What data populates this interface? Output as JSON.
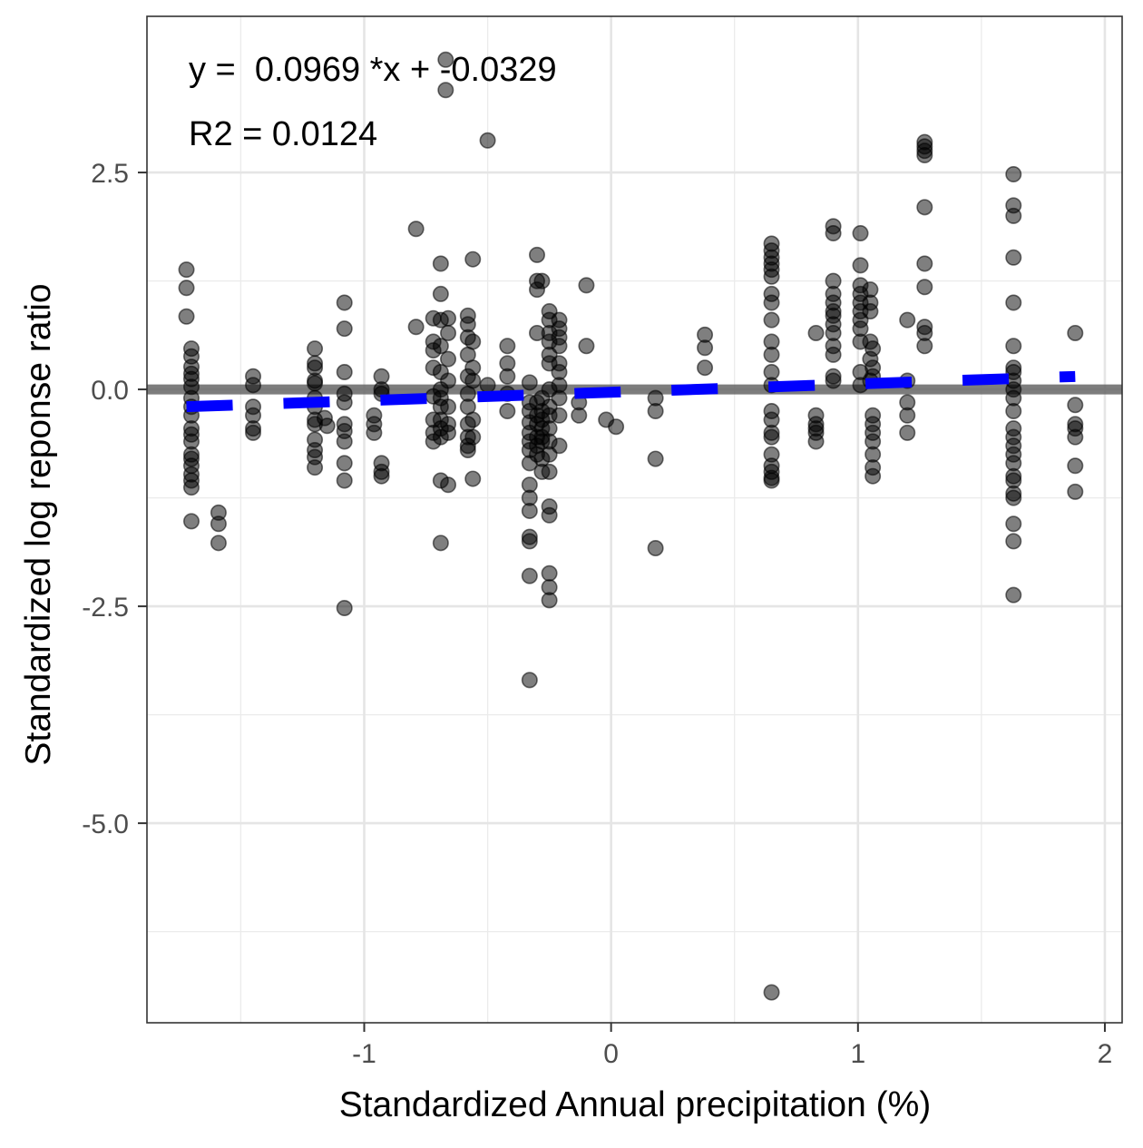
{
  "chart_data": {
    "type": "scatter",
    "xlabel": "Standardized Annual precipitation (%)",
    "ylabel": "Standardized log reponse ratio",
    "xlim": [
      -1.88,
      2.07
    ],
    "ylim": [
      -7.3,
      4.3
    ],
    "x_ticks": [
      -1,
      0,
      1,
      2
    ],
    "x_tick_labels": [
      "-1",
      "0",
      "1",
      "2"
    ],
    "y_ticks": [
      2.5,
      0.0,
      -2.5,
      -5.0
    ],
    "y_tick_labels": [
      "2.5",
      "0.0",
      "-2.5",
      "-5.0"
    ],
    "grid": true,
    "annotations": {
      "equation": "y =  0.0969 *x + -0.0329",
      "r2": "R2 = 0.0124"
    },
    "reference_line": {
      "y": 0,
      "color": "#666666"
    },
    "fit_line": {
      "slope": 0.0969,
      "intercept": -0.0329,
      "x_range": [
        -1.72,
        1.88
      ],
      "color": "#0000ff",
      "style": "dashed"
    },
    "point_color": "#000000",
    "points": [
      [
        -1.72,
        1.38
      ],
      [
        -1.72,
        1.17
      ],
      [
        -1.72,
        0.84
      ],
      [
        -1.7,
        0.47
      ],
      [
        -1.7,
        0.38
      ],
      [
        -1.7,
        0.26
      ],
      [
        -1.7,
        0.18
      ],
      [
        -1.7,
        0.12
      ],
      [
        -1.7,
        0.03
      ],
      [
        -1.7,
        -0.1
      ],
      [
        -1.7,
        -0.2
      ],
      [
        -1.7,
        -0.3
      ],
      [
        -1.7,
        -0.45
      ],
      [
        -1.7,
        -0.52
      ],
      [
        -1.7,
        -0.6
      ],
      [
        -1.7,
        -0.75
      ],
      [
        -1.7,
        -0.8
      ],
      [
        -1.7,
        -0.88
      ],
      [
        -1.7,
        -0.98
      ],
      [
        -1.7,
        -1.05
      ],
      [
        -1.7,
        -1.13
      ],
      [
        -1.7,
        -1.52
      ],
      [
        -1.59,
        -1.42
      ],
      [
        -1.59,
        -1.55
      ],
      [
        -1.59,
        -1.77
      ],
      [
        -1.45,
        0.15
      ],
      [
        -1.45,
        0.05
      ],
      [
        -1.45,
        -0.2
      ],
      [
        -1.45,
        -0.3
      ],
      [
        -1.45,
        -0.45
      ],
      [
        -1.45,
        -0.5
      ],
      [
        -1.2,
        0.47
      ],
      [
        -1.2,
        0.3
      ],
      [
        -1.2,
        0.25
      ],
      [
        -1.2,
        0.1
      ],
      [
        -1.2,
        0.07
      ],
      [
        -1.2,
        -0.1
      ],
      [
        -1.2,
        -0.2
      ],
      [
        -1.2,
        -0.35
      ],
      [
        -1.2,
        -0.4
      ],
      [
        -1.2,
        -0.58
      ],
      [
        -1.2,
        -0.7
      ],
      [
        -1.2,
        -0.78
      ],
      [
        -1.2,
        -0.9
      ],
      [
        -1.16,
        -0.33
      ],
      [
        -1.15,
        -0.42
      ],
      [
        -1.08,
        1.0
      ],
      [
        -1.08,
        0.7
      ],
      [
        -1.08,
        0.2
      ],
      [
        -1.08,
        -0.05
      ],
      [
        -1.08,
        -0.15
      ],
      [
        -1.08,
        -0.4
      ],
      [
        -1.08,
        -0.48
      ],
      [
        -1.08,
        -0.6
      ],
      [
        -1.08,
        -0.85
      ],
      [
        -1.08,
        -1.05
      ],
      [
        -1.08,
        -2.52
      ],
      [
        -0.96,
        -0.3
      ],
      [
        -0.96,
        -0.4
      ],
      [
        -0.96,
        -0.5
      ],
      [
        -0.93,
        0.15
      ],
      [
        -0.93,
        0.0
      ],
      [
        -0.93,
        -0.05
      ],
      [
        -0.93,
        -0.85
      ],
      [
        -0.93,
        -0.95
      ],
      [
        -0.93,
        -1.0
      ],
      [
        -0.79,
        1.85
      ],
      [
        -0.79,
        0.72
      ],
      [
        -0.72,
        0.82
      ],
      [
        -0.72,
        0.55
      ],
      [
        -0.72,
        0.45
      ],
      [
        -0.72,
        0.25
      ],
      [
        -0.72,
        -0.08
      ],
      [
        -0.72,
        -0.35
      ],
      [
        -0.72,
        -0.5
      ],
      [
        -0.72,
        -0.6
      ],
      [
        -0.69,
        1.45
      ],
      [
        -0.69,
        1.1
      ],
      [
        -0.69,
        0.8
      ],
      [
        -0.69,
        0.5
      ],
      [
        -0.69,
        0.2
      ],
      [
        -0.69,
        0.0
      ],
      [
        -0.69,
        -0.1
      ],
      [
        -0.69,
        -0.2
      ],
      [
        -0.69,
        -0.35
      ],
      [
        -0.69,
        -0.45
      ],
      [
        -0.69,
        -0.55
      ],
      [
        -0.69,
        -1.05
      ],
      [
        -0.69,
        -1.77
      ],
      [
        -0.67,
        3.8
      ],
      [
        -0.67,
        3.45
      ],
      [
        -0.66,
        0.82
      ],
      [
        -0.66,
        0.65
      ],
      [
        -0.66,
        0.35
      ],
      [
        -0.66,
        0.1
      ],
      [
        -0.66,
        -0.2
      ],
      [
        -0.66,
        -0.4
      ],
      [
        -0.66,
        -0.5
      ],
      [
        -0.66,
        -1.1
      ],
      [
        -0.58,
        0.85
      ],
      [
        -0.58,
        0.75
      ],
      [
        -0.58,
        0.6
      ],
      [
        -0.58,
        0.4
      ],
      [
        -0.58,
        0.15
      ],
      [
        -0.58,
        -0.05
      ],
      [
        -0.58,
        -0.2
      ],
      [
        -0.58,
        -0.4
      ],
      [
        -0.58,
        -0.55
      ],
      [
        -0.58,
        -0.65
      ],
      [
        -0.58,
        -0.7
      ],
      [
        -0.56,
        1.5
      ],
      [
        -0.56,
        0.55
      ],
      [
        -0.56,
        0.25
      ],
      [
        -0.56,
        0.1
      ],
      [
        -0.56,
        -0.35
      ],
      [
        -0.56,
        -0.55
      ],
      [
        -0.56,
        -1.03
      ],
      [
        -0.5,
        2.87
      ],
      [
        -0.5,
        0.05
      ],
      [
        -0.42,
        0.5
      ],
      [
        -0.42,
        0.3
      ],
      [
        -0.42,
        0.15
      ],
      [
        -0.42,
        -0.05
      ],
      [
        -0.42,
        -0.25
      ],
      [
        -0.33,
        0.08
      ],
      [
        -0.33,
        -0.15
      ],
      [
        -0.33,
        -0.25
      ],
      [
        -0.33,
        -0.38
      ],
      [
        -0.33,
        -0.5
      ],
      [
        -0.33,
        -0.6
      ],
      [
        -0.33,
        -0.7
      ],
      [
        -0.33,
        -0.85
      ],
      [
        -0.33,
        -1.1
      ],
      [
        -0.33,
        -1.25
      ],
      [
        -0.33,
        -1.4
      ],
      [
        -0.33,
        -1.7
      ],
      [
        -0.33,
        -1.75
      ],
      [
        -0.33,
        -2.15
      ],
      [
        -0.33,
        -3.35
      ],
      [
        -0.3,
        1.55
      ],
      [
        -0.3,
        1.25
      ],
      [
        -0.3,
        1.15
      ],
      [
        -0.3,
        0.65
      ],
      [
        -0.3,
        -0.15
      ],
      [
        -0.3,
        -0.3
      ],
      [
        -0.3,
        -0.4
      ],
      [
        -0.3,
        -0.55
      ],
      [
        -0.3,
        -0.65
      ],
      [
        -0.3,
        -0.75
      ],
      [
        -0.28,
        1.25
      ],
      [
        -0.28,
        -0.1
      ],
      [
        -0.28,
        -0.25
      ],
      [
        -0.28,
        -0.35
      ],
      [
        -0.28,
        -0.45
      ],
      [
        -0.28,
        -0.55
      ],
      [
        -0.28,
        -0.6
      ],
      [
        -0.28,
        -0.8
      ],
      [
        -0.28,
        -0.95
      ],
      [
        -0.25,
        0.9
      ],
      [
        -0.25,
        0.8
      ],
      [
        -0.25,
        0.65
      ],
      [
        -0.25,
        0.55
      ],
      [
        -0.25,
        0.4
      ],
      [
        -0.25,
        0.3
      ],
      [
        -0.25,
        0.0
      ],
      [
        -0.25,
        -0.2
      ],
      [
        -0.25,
        -0.3
      ],
      [
        -0.25,
        -0.45
      ],
      [
        -0.25,
        -0.6
      ],
      [
        -0.25,
        -0.75
      ],
      [
        -0.25,
        -0.95
      ],
      [
        -0.25,
        -1.35
      ],
      [
        -0.25,
        -1.45
      ],
      [
        -0.25,
        -2.12
      ],
      [
        -0.25,
        -2.28
      ],
      [
        -0.25,
        -2.43
      ],
      [
        -0.21,
        0.8
      ],
      [
        -0.21,
        0.7
      ],
      [
        -0.21,
        0.6
      ],
      [
        -0.21,
        0.5
      ],
      [
        -0.21,
        0.3
      ],
      [
        -0.21,
        0.2
      ],
      [
        -0.21,
        0.05
      ],
      [
        -0.21,
        -0.1
      ],
      [
        -0.21,
        -0.3
      ],
      [
        -0.21,
        -0.65
      ],
      [
        -0.1,
        1.2
      ],
      [
        -0.1,
        0.5
      ],
      [
        -0.13,
        -0.15
      ],
      [
        -0.13,
        -0.3
      ],
      [
        -0.02,
        -0.35
      ],
      [
        0.02,
        -0.43
      ],
      [
        0.18,
        -0.1
      ],
      [
        0.18,
        -0.25
      ],
      [
        0.18,
        -0.8
      ],
      [
        0.18,
        -1.83
      ],
      [
        0.38,
        0.63
      ],
      [
        0.38,
        0.48
      ],
      [
        0.38,
        0.25
      ],
      [
        0.65,
        1.68
      ],
      [
        0.65,
        1.6
      ],
      [
        0.65,
        1.52
      ],
      [
        0.65,
        1.45
      ],
      [
        0.65,
        1.38
      ],
      [
        0.65,
        1.3
      ],
      [
        0.65,
        1.1
      ],
      [
        0.65,
        1.0
      ],
      [
        0.65,
        0.8
      ],
      [
        0.65,
        0.55
      ],
      [
        0.65,
        0.4
      ],
      [
        0.65,
        0.2
      ],
      [
        0.65,
        0.05
      ],
      [
        0.65,
        -0.25
      ],
      [
        0.65,
        -0.35
      ],
      [
        0.65,
        -0.5
      ],
      [
        0.65,
        -0.55
      ],
      [
        0.65,
        -0.75
      ],
      [
        0.65,
        -0.88
      ],
      [
        0.65,
        -0.95
      ],
      [
        0.65,
        -1.02
      ],
      [
        0.65,
        -1.05
      ],
      [
        0.65,
        -6.95
      ],
      [
        0.83,
        0.65
      ],
      [
        0.83,
        -0.3
      ],
      [
        0.83,
        -0.4
      ],
      [
        0.83,
        -0.45
      ],
      [
        0.83,
        -0.5
      ],
      [
        0.83,
        -0.6
      ],
      [
        0.9,
        1.88
      ],
      [
        0.9,
        1.8
      ],
      [
        0.9,
        1.25
      ],
      [
        0.9,
        1.1
      ],
      [
        0.9,
        1.0
      ],
      [
        0.9,
        0.9
      ],
      [
        0.9,
        0.85
      ],
      [
        0.9,
        0.75
      ],
      [
        0.9,
        0.65
      ],
      [
        0.9,
        0.5
      ],
      [
        0.9,
        0.4
      ],
      [
        0.9,
        0.15
      ],
      [
        0.9,
        0.1
      ],
      [
        1.01,
        1.8
      ],
      [
        1.01,
        1.43
      ],
      [
        1.01,
        1.2
      ],
      [
        1.01,
        1.1
      ],
      [
        1.01,
        1.0
      ],
      [
        1.01,
        0.9
      ],
      [
        1.01,
        0.8
      ],
      [
        1.01,
        0.7
      ],
      [
        1.01,
        0.55
      ],
      [
        1.01,
        0.2
      ],
      [
        1.01,
        0.05
      ],
      [
        1.05,
        1.15
      ],
      [
        1.05,
        1.0
      ],
      [
        1.05,
        0.9
      ],
      [
        1.05,
        0.55
      ],
      [
        1.05,
        0.35
      ],
      [
        1.05,
        0.1
      ],
      [
        1.06,
        0.47
      ],
      [
        1.06,
        0.25
      ],
      [
        1.06,
        0.15
      ],
      [
        1.06,
        -0.3
      ],
      [
        1.06,
        -0.4
      ],
      [
        1.06,
        -0.5
      ],
      [
        1.06,
        -0.6
      ],
      [
        1.06,
        -0.75
      ],
      [
        1.06,
        -0.9
      ],
      [
        1.06,
        -1.0
      ],
      [
        1.2,
        0.8
      ],
      [
        1.2,
        0.1
      ],
      [
        1.2,
        -0.15
      ],
      [
        1.2,
        -0.3
      ],
      [
        1.2,
        -0.5
      ],
      [
        1.27,
        2.85
      ],
      [
        1.27,
        2.8
      ],
      [
        1.27,
        2.75
      ],
      [
        1.27,
        2.7
      ],
      [
        1.27,
        2.1
      ],
      [
        1.27,
        1.45
      ],
      [
        1.27,
        1.18
      ],
      [
        1.27,
        0.72
      ],
      [
        1.27,
        0.65
      ],
      [
        1.27,
        0.5
      ],
      [
        1.63,
        2.48
      ],
      [
        1.63,
        2.12
      ],
      [
        1.63,
        2.0
      ],
      [
        1.63,
        1.52
      ],
      [
        1.63,
        1.0
      ],
      [
        1.63,
        0.5
      ],
      [
        1.63,
        0.25
      ],
      [
        1.63,
        0.2
      ],
      [
        1.63,
        0.1
      ],
      [
        1.63,
        0.0
      ],
      [
        1.63,
        -0.1
      ],
      [
        1.63,
        -0.25
      ],
      [
        1.63,
        -0.45
      ],
      [
        1.63,
        -0.55
      ],
      [
        1.63,
        -0.65
      ],
      [
        1.63,
        -0.75
      ],
      [
        1.63,
        -0.85
      ],
      [
        1.63,
        -1.0
      ],
      [
        1.63,
        -1.05
      ],
      [
        1.63,
        -1.2
      ],
      [
        1.63,
        -1.25
      ],
      [
        1.63,
        -1.55
      ],
      [
        1.63,
        -1.75
      ],
      [
        1.63,
        -2.37
      ],
      [
        1.88,
        0.65
      ],
      [
        1.88,
        -0.18
      ],
      [
        1.88,
        -0.4
      ],
      [
        1.88,
        -0.45
      ],
      [
        1.88,
        -0.55
      ],
      [
        1.88,
        -0.88
      ],
      [
        1.88,
        -1.18
      ]
    ]
  }
}
